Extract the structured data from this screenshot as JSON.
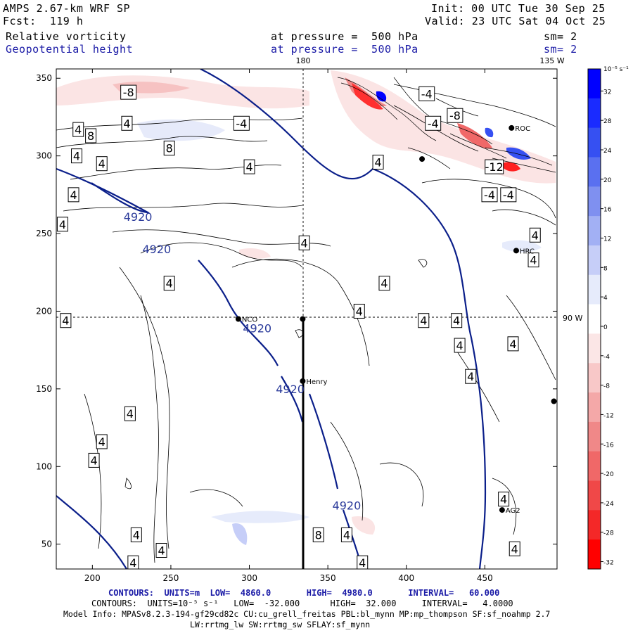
{
  "header": {
    "model": "AMPS 2.67-km WRF SP",
    "fcst": "Fcst:  119 h",
    "init": "Init: 00 UTC Tue 30 Sep 25",
    "valid": "Valid: 23 UTC Sat 04 Oct 25",
    "field1": "Relative vorticity",
    "field2": "Geopotential height",
    "pressure1": "at pressure =  500 hPa",
    "pressure2": "at pressure =  500 hPa",
    "sm1": "sm= 2",
    "sm2": "sm= 2"
  },
  "footer": {
    "contours_height": "CONTOURS:  UNITS=m  LOW=  4860.0       HIGH=  4980.0       INTERVAL=   60.000",
    "contours_vort": "CONTOURS:  UNITS=10⁻⁵ s⁻¹   LOW=  -32.000      HIGH=  32.000     INTERVAL=   4.0000",
    "model_info": "Model Info: MPASv8.2.3-194-gf29cd82c CU:cu_grell_freitas PBL:bl_mynn MP:mp_thompson SF:sf_noahmp 2.7",
    "physics": "LW:rrtmg_lw SW:rrtmg_sw SFLAY:sf_mynn"
  },
  "chart_data": {
    "type": "contour-map",
    "title": "Relative vorticity / Geopotential height at 500 hPa",
    "x_ticks": [
      200,
      250,
      300,
      350,
      400,
      450
    ],
    "y_ticks": [
      50,
      100,
      150,
      200,
      250,
      300,
      350
    ],
    "xlim": [
      177,
      496
    ],
    "ylim": [
      34,
      356
    ],
    "meridian_labels": {
      "top": "180",
      "top_right": "135 W",
      "right": "90 W"
    },
    "height_contour_label": "4920",
    "height_label_positions": [
      [
        229,
        261
      ],
      [
        241,
        240
      ],
      [
        305,
        189
      ],
      [
        326,
        150
      ],
      [
        362,
        75
      ]
    ],
    "vorticity_labels": [
      {
        "text": "-8",
        "x": 223,
        "y": 341
      },
      {
        "text": "4",
        "x": 222,
        "y": 321
      },
      {
        "text": "4",
        "x": 191,
        "y": 317
      },
      {
        "text": "8",
        "x": 199,
        "y": 313
      },
      {
        "text": "-4",
        "x": 295,
        "y": 321
      },
      {
        "text": "8",
        "x": 249,
        "y": 305
      },
      {
        "text": "4",
        "x": 190,
        "y": 300
      },
      {
        "text": "4",
        "x": 206,
        "y": 295
      },
      {
        "text": "4",
        "x": 300,
        "y": 293
      },
      {
        "text": "4",
        "x": 382,
        "y": 296
      },
      {
        "text": "-4",
        "x": 413,
        "y": 340
      },
      {
        "text": "-4",
        "x": 417,
        "y": 321
      },
      {
        "text": "-8",
        "x": 431,
        "y": 326
      },
      {
        "text": "-12",
        "x": 456,
        "y": 293
      },
      {
        "text": "-4",
        "x": 453,
        "y": 275
      },
      {
        "text": "-4",
        "x": 465,
        "y": 275
      },
      {
        "text": "4",
        "x": 188,
        "y": 275
      },
      {
        "text": "4",
        "x": 181,
        "y": 256
      },
      {
        "text": "4",
        "x": 335,
        "y": 244
      },
      {
        "text": "4",
        "x": 482,
        "y": 249
      },
      {
        "text": "4",
        "x": 481,
        "y": 233
      },
      {
        "text": "4",
        "x": 249,
        "y": 218
      },
      {
        "text": "4",
        "x": 386,
        "y": 218
      },
      {
        "text": "4",
        "x": 370,
        "y": 200
      },
      {
        "text": "4",
        "x": 183,
        "y": 194
      },
      {
        "text": "4",
        "x": 411,
        "y": 194
      },
      {
        "text": "4",
        "x": 432,
        "y": 194
      },
      {
        "text": "4",
        "x": 434,
        "y": 178
      },
      {
        "text": "4",
        "x": 468,
        "y": 179
      },
      {
        "text": "4",
        "x": 441,
        "y": 158
      },
      {
        "text": "4",
        "x": 224,
        "y": 134
      },
      {
        "text": "4",
        "x": 206,
        "y": 116
      },
      {
        "text": "4",
        "x": 201,
        "y": 104
      },
      {
        "text": "4",
        "x": 462,
        "y": 79
      },
      {
        "text": "4",
        "x": 228,
        "y": 56
      },
      {
        "text": "8",
        "x": 344,
        "y": 56
      },
      {
        "text": "4",
        "x": 362,
        "y": 56
      },
      {
        "text": "4",
        "x": 244,
        "y": 46
      },
      {
        "text": "4",
        "x": 226,
        "y": 38
      },
      {
        "text": "4",
        "x": 372,
        "y": 38
      },
      {
        "text": "4",
        "x": 469,
        "y": 47
      }
    ],
    "stations": [
      {
        "name": "NCO",
        "x": 293,
        "y": 195
      },
      {
        "name": "Henry",
        "x": 334,
        "y": 155
      },
      {
        "name": "HRC",
        "x": 470,
        "y": 239
      },
      {
        "name": "AG2",
        "x": 461,
        "y": 72
      },
      {
        "name": "ROC",
        "x": 467,
        "y": 318
      },
      {
        "name": "",
        "x": 334,
        "y": 195
      },
      {
        "name": "",
        "x": 410,
        "y": 298
      },
      {
        "name": "",
        "x": 494,
        "y": 142
      }
    ],
    "colorbar": {
      "unit": "10⁻⁵ s⁻¹",
      "ticks": [
        32,
        28,
        24,
        20,
        16,
        12,
        8,
        4,
        0,
        -4,
        -8,
        -12,
        -16,
        -20,
        -24,
        -28,
        -32
      ],
      "colors": [
        "#0000ff",
        "#1a2bff",
        "#3650f2",
        "#5a70f0",
        "#7f90f0",
        "#a2b0f4",
        "#c6cef8",
        "#e6ebfb",
        "#ffffff",
        "#fbe6e6",
        "#f8c8c8",
        "#f4a8a8",
        "#f08888",
        "#f06868",
        "#f04848",
        "#f42828",
        "#ff0000"
      ]
    }
  }
}
